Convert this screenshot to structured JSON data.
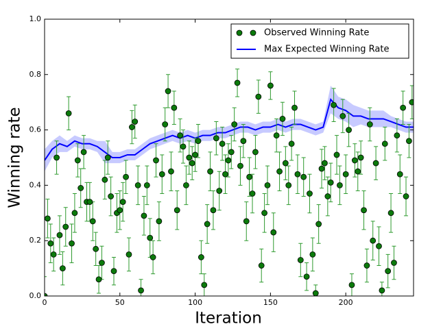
{
  "chart_data": {
    "type": "scatter",
    "xlabel": "Iteration",
    "ylabel": "Winning rate",
    "xlim": [
      0,
      245
    ],
    "ylim": [
      0,
      1
    ],
    "xticks": [
      0,
      50,
      100,
      150,
      200
    ],
    "yticks": [
      {
        "value": 0,
        "label": "0.0"
      },
      {
        "value": 0.2,
        "label": "0.2"
      },
      {
        "value": 0.4,
        "label": "0.4"
      },
      {
        "value": 0.6,
        "label": "0.6"
      },
      {
        "value": 0.8,
        "label": "0.8"
      },
      {
        "value": 1,
        "label": "1.0"
      }
    ],
    "legend": "upper right",
    "series": [
      {
        "name": "Observed Winning Rate",
        "type": "scatter",
        "color": "#0b7a0b",
        "error_color": "#2e9a2e",
        "x": [
          0,
          2,
          4,
          6,
          8,
          10,
          12,
          14,
          16,
          18,
          20,
          22,
          24,
          26,
          28,
          30,
          32,
          34,
          36,
          38,
          40,
          42,
          44,
          46,
          48,
          50,
          52,
          54,
          56,
          58,
          60,
          62,
          64,
          66,
          68,
          70,
          72,
          74,
          76,
          78,
          80,
          82,
          84,
          86,
          88,
          90,
          92,
          94,
          96,
          98,
          100,
          102,
          104,
          106,
          108,
          110,
          112,
          114,
          116,
          118,
          120,
          122,
          124,
          126,
          128,
          130,
          132,
          134,
          136,
          138,
          140,
          142,
          144,
          146,
          148,
          150,
          152,
          154,
          156,
          158,
          160,
          162,
          164,
          166,
          168,
          170,
          172,
          174,
          176,
          178,
          180,
          182,
          184,
          186,
          188,
          190,
          192,
          194,
          196,
          198,
          200,
          202,
          204,
          206,
          208,
          210,
          212,
          214,
          216,
          218,
          220,
          222,
          224,
          226,
          228,
          230,
          232,
          234,
          236,
          238,
          240,
          242,
          244
        ],
        "values": [
          0.0,
          0.28,
          0.19,
          0.15,
          0.5,
          0.22,
          0.1,
          0.25,
          0.66,
          0.19,
          0.3,
          0.49,
          0.39,
          0.52,
          0.34,
          0.34,
          0.27,
          0.17,
          0.06,
          0.12,
          0.42,
          0.5,
          0.36,
          0.09,
          0.3,
          0.31,
          0.34,
          0.43,
          0.15,
          0.61,
          0.63,
          0.4,
          0.02,
          0.29,
          0.4,
          0.21,
          0.14,
          0.49,
          0.27,
          0.44,
          0.62,
          0.74,
          0.45,
          0.68,
          0.31,
          0.58,
          0.54,
          0.4,
          0.5,
          0.48,
          0.51,
          0.56,
          0.14,
          0.04,
          0.26,
          0.45,
          0.31,
          0.57,
          0.38,
          0.55,
          0.44,
          0.49,
          0.52,
          0.62,
          0.77,
          0.47,
          0.56,
          0.27,
          0.43,
          0.37,
          0.52,
          0.72,
          0.11,
          0.3,
          0.4,
          0.76,
          0.23,
          0.58,
          0.45,
          0.64,
          0.48,
          0.4,
          0.55,
          0.68,
          0.44,
          0.13,
          0.43,
          0.07,
          0.37,
          0.15,
          0.01,
          0.26,
          0.46,
          0.48,
          0.36,
          0.41,
          0.69,
          0.51,
          0.4,
          0.65,
          0.44,
          0.6,
          0.04,
          0.49,
          0.45,
          0.5,
          0.31,
          0.11,
          0.62,
          0.2,
          0.48,
          0.18,
          0.02,
          0.55,
          0.09,
          0.3,
          0.12,
          0.58,
          0.44,
          0.68,
          0.36,
          0.56,
          0.7
        ],
        "errors": [
          0.07,
          0.07,
          0.07,
          0.06,
          0.06,
          0.07,
          0.06,
          0.07,
          0.06,
          0.07,
          0.07,
          0.06,
          0.07,
          0.06,
          0.07,
          0.07,
          0.07,
          0.06,
          0.05,
          0.06,
          0.07,
          0.06,
          0.07,
          0.05,
          0.07,
          0.07,
          0.07,
          0.06,
          0.06,
          0.06,
          0.06,
          0.07,
          0.04,
          0.07,
          0.07,
          0.07,
          0.06,
          0.06,
          0.07,
          0.07,
          0.06,
          0.06,
          0.07,
          0.06,
          0.07,
          0.06,
          0.06,
          0.07,
          0.06,
          0.06,
          0.06,
          0.06,
          0.06,
          0.04,
          0.07,
          0.07,
          0.07,
          0.06,
          0.07,
          0.06,
          0.07,
          0.06,
          0.06,
          0.06,
          0.05,
          0.07,
          0.06,
          0.07,
          0.07,
          0.07,
          0.06,
          0.06,
          0.06,
          0.07,
          0.07,
          0.05,
          0.07,
          0.06,
          0.07,
          0.06,
          0.06,
          0.07,
          0.06,
          0.06,
          0.07,
          0.06,
          0.07,
          0.05,
          0.07,
          0.06,
          0.03,
          0.07,
          0.07,
          0.06,
          0.07,
          0.07,
          0.06,
          0.07,
          0.07,
          0.06,
          0.07,
          0.06,
          0.04,
          0.06,
          0.07,
          0.06,
          0.07,
          0.06,
          0.06,
          0.07,
          0.06,
          0.07,
          0.03,
          0.06,
          0.06,
          0.07,
          0.06,
          0.06,
          0.07,
          0.06,
          0.07,
          0.06,
          0.06
        ]
      },
      {
        "name": "Max Expected Winning Rate",
        "type": "line",
        "color": "#0000ff",
        "band_color": "#8f96ff",
        "x": [
          0,
          5,
          10,
          15,
          20,
          25,
          30,
          35,
          40,
          45,
          50,
          55,
          60,
          65,
          70,
          75,
          80,
          85,
          90,
          95,
          100,
          105,
          110,
          115,
          120,
          125,
          130,
          135,
          140,
          145,
          150,
          155,
          160,
          165,
          170,
          175,
          180,
          185,
          190,
          195,
          200,
          205,
          210,
          215,
          220,
          225,
          230,
          235,
          240,
          245
        ],
        "values": [
          0.49,
          0.53,
          0.55,
          0.54,
          0.56,
          0.55,
          0.55,
          0.54,
          0.52,
          0.5,
          0.5,
          0.51,
          0.51,
          0.53,
          0.55,
          0.56,
          0.57,
          0.58,
          0.57,
          0.58,
          0.57,
          0.58,
          0.58,
          0.59,
          0.59,
          0.6,
          0.61,
          0.61,
          0.6,
          0.61,
          0.61,
          0.62,
          0.61,
          0.62,
          0.62,
          0.61,
          0.6,
          0.61,
          0.71,
          0.68,
          0.67,
          0.65,
          0.65,
          0.64,
          0.64,
          0.64,
          0.63,
          0.62,
          0.61,
          0.61
        ],
        "uncertainty": [
          0.04,
          0.03,
          0.03,
          0.02,
          0.02,
          0.02,
          0.02,
          0.02,
          0.04,
          0.02,
          0.02,
          0.02,
          0.02,
          0.02,
          0.02,
          0.02,
          0.02,
          0.02,
          0.02,
          0.02,
          0.02,
          0.02,
          0.02,
          0.02,
          0.02,
          0.02,
          0.02,
          0.02,
          0.02,
          0.02,
          0.02,
          0.02,
          0.02,
          0.02,
          0.02,
          0.02,
          0.02,
          0.02,
          0.05,
          0.04,
          0.04,
          0.04,
          0.03,
          0.03,
          0.03,
          0.03,
          0.02,
          0.02,
          0.02,
          0.02
        ]
      }
    ]
  }
}
